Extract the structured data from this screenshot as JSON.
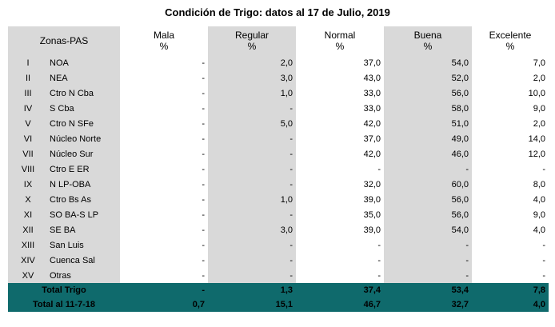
{
  "title": "Condición de Trigo: datos al 17 de Julio, 2019",
  "header": {
    "zone_label": "Zonas-PAS",
    "cols": [
      "Mala",
      "Regular",
      "Normal",
      "Buena",
      "Excelente"
    ],
    "unit": "%"
  },
  "rows": [
    {
      "num": "I",
      "zone": "NOA",
      "v": [
        "-",
        "2,0",
        "37,0",
        "54,0",
        "7,0"
      ]
    },
    {
      "num": "II",
      "zone": "NEA",
      "v": [
        "-",
        "3,0",
        "43,0",
        "52,0",
        "2,0"
      ]
    },
    {
      "num": "III",
      "zone": "Ctro N Cba",
      "v": [
        "-",
        "1,0",
        "33,0",
        "56,0",
        "10,0"
      ]
    },
    {
      "num": "IV",
      "zone": "S Cba",
      "v": [
        "-",
        "-",
        "33,0",
        "58,0",
        "9,0"
      ]
    },
    {
      "num": "V",
      "zone": "Ctro N SFe",
      "v": [
        "-",
        "5,0",
        "42,0",
        "51,0",
        "2,0"
      ]
    },
    {
      "num": "VI",
      "zone": "Núcleo Norte",
      "v": [
        "-",
        "-",
        "37,0",
        "49,0",
        "14,0"
      ]
    },
    {
      "num": "VII",
      "zone": "Núcleo Sur",
      "v": [
        "-",
        "-",
        "42,0",
        "46,0",
        "12,0"
      ]
    },
    {
      "num": "VIII",
      "zone": "Ctro E ER",
      "v": [
        "-",
        "-",
        "-",
        "-",
        "-"
      ]
    },
    {
      "num": "IX",
      "zone": "N LP-OBA",
      "v": [
        "-",
        "-",
        "32,0",
        "60,0",
        "8,0"
      ]
    },
    {
      "num": "X",
      "zone": "Ctro Bs As",
      "v": [
        "-",
        "1,0",
        "39,0",
        "56,0",
        "4,0"
      ]
    },
    {
      "num": "XI",
      "zone": "SO BA-S LP",
      "v": [
        "-",
        "-",
        "35,0",
        "56,0",
        "9,0"
      ]
    },
    {
      "num": "XII",
      "zone": "SE BA",
      "v": [
        "-",
        "3,0",
        "39,0",
        "54,0",
        "4,0"
      ]
    },
    {
      "num": "XIII",
      "zone": "San Luis",
      "v": [
        "-",
        "-",
        "-",
        "-",
        "-"
      ]
    },
    {
      "num": "XIV",
      "zone": "Cuenca Sal",
      "v": [
        "-",
        "-",
        "-",
        "-",
        "-"
      ]
    },
    {
      "num": "XV",
      "zone": "Otras",
      "v": [
        "-",
        "-",
        "-",
        "-",
        "-"
      ]
    }
  ],
  "totals": [
    {
      "label": "Total Trigo",
      "v": [
        "-",
        "1,3",
        "37,4",
        "53,4",
        "7,8"
      ]
    },
    {
      "label": "Total al 11-7-18",
      "v": [
        "0,7",
        "15,1",
        "46,7",
        "32,7",
        "4,0"
      ]
    }
  ]
}
